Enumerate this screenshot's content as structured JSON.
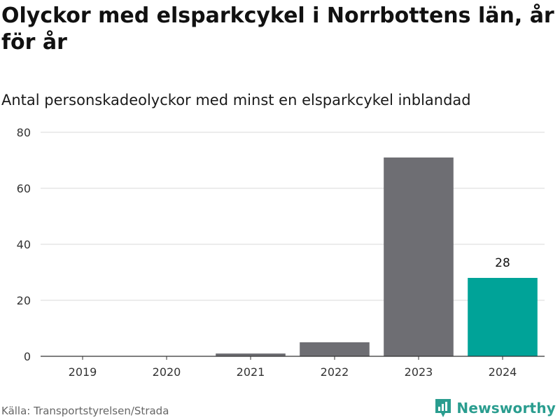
{
  "header": {
    "title": "Olyckor med elsparkcykel i Norrbottens län, år för år",
    "subtitle": "Antal personskadeolyckor med minst en elsparkcykel inblandad"
  },
  "footer": {
    "source": "Källa: Transportstyrelsen/Strada",
    "brand": "Newsworthy",
    "brand_icon": "newsworthy-logo-icon"
  },
  "colors": {
    "bar": "#6e6e73",
    "highlight": "#00a398",
    "grid": "#d9d9d9",
    "axis": "#333333",
    "brand": "#2a9d8f"
  },
  "chart_data": {
    "type": "bar",
    "categories": [
      "2019",
      "2020",
      "2021",
      "2022",
      "2023",
      "2024"
    ],
    "values": [
      0,
      0,
      1,
      5,
      71,
      28
    ],
    "highlight_index": 5,
    "data_labels": [
      {
        "index": 5,
        "text": "28"
      }
    ],
    "yticks": [
      "0",
      "20",
      "40",
      "60",
      "80"
    ],
    "ylim": [
      0,
      80
    ],
    "grid": true
  }
}
